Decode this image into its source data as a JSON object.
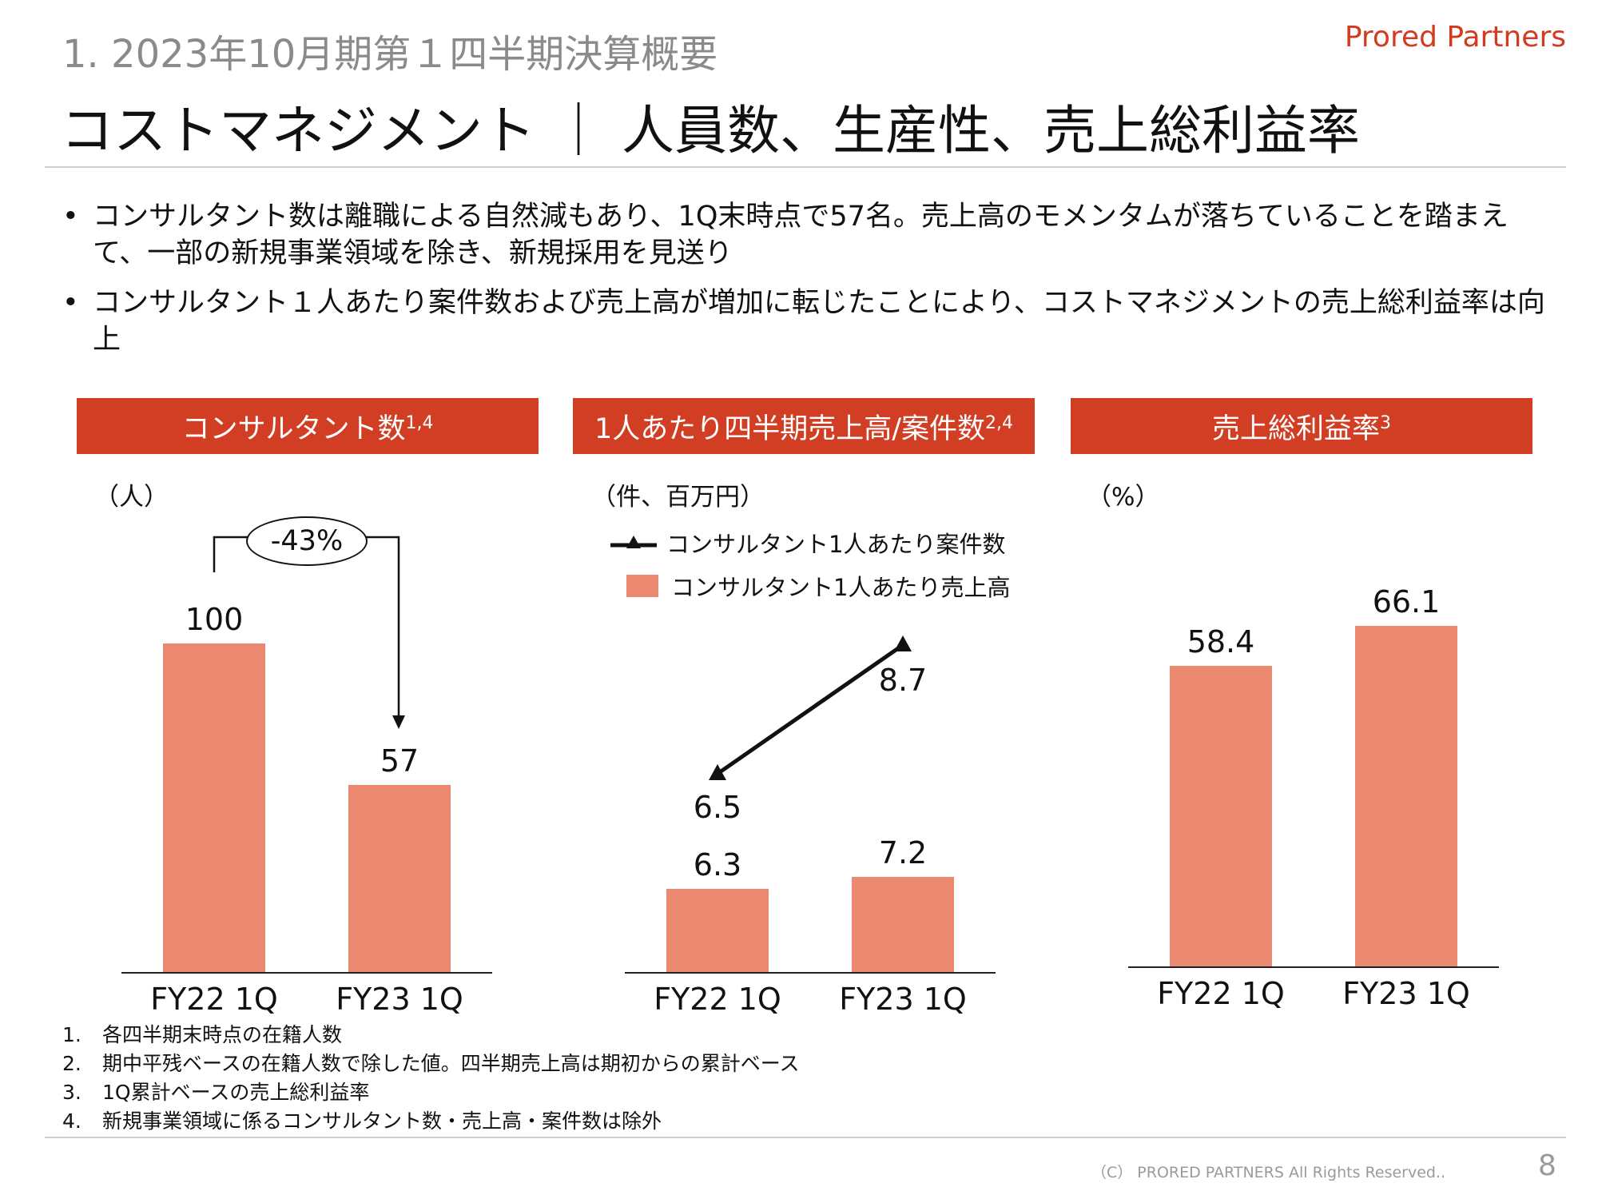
{
  "header": {
    "breadcrumb": "1.  2023年10月期第１四半期決算概要",
    "logo": "Prored Partners",
    "title": "コストマネジメント ｜ 人員数、生産性、売上総利益率"
  },
  "bullets": [
    "コンサルタント数は離職による自然減もあり、1Q末時点で57名。売上高のモメンタムが落ちていることを踏まえて、一部の新規事業領域を除き、新規採用を見送り",
    "コンサルタント１人あたり案件数および売上高が増加に転じたことにより、コストマネジメントの売上総利益率は向上"
  ],
  "colors": {
    "accent": "#d23e24",
    "bar": "#eb8870",
    "line": "#111111"
  },
  "chart_data": [
    {
      "type": "bar",
      "title": "コンサルタント数",
      "title_sup": "1,4",
      "unit": "（人）",
      "categories": [
        "FY22 1Q",
        "FY23 1Q"
      ],
      "values": [
        100,
        57
      ],
      "value_labels": [
        "100",
        "57"
      ],
      "ylim": [
        0,
        100
      ],
      "annotation": "-43%"
    },
    {
      "type": "bar",
      "title": "1人あたり四半期売上高/案件数",
      "title_sup": "2,4",
      "unit": "（件、百万円）",
      "categories": [
        "FY22 1Q",
        "FY23 1Q"
      ],
      "series": [
        {
          "name": "コンサルタント1人あたり案件数",
          "type": "line",
          "values": [
            6.5,
            8.7
          ],
          "value_labels": [
            "6.5",
            "8.7"
          ]
        },
        {
          "name": "コンサルタント1人あたり売上高",
          "type": "bar",
          "values": [
            6.3,
            7.2
          ],
          "value_labels": [
            "6.3",
            "7.2"
          ]
        }
      ]
    },
    {
      "type": "bar",
      "title": "売上総利益率",
      "title_sup": "3",
      "unit": "（%）",
      "categories": [
        "FY22 1Q",
        "FY23 1Q"
      ],
      "values": [
        58.4,
        66.1
      ],
      "value_labels": [
        "58.4",
        "66.1"
      ],
      "ylim": [
        0,
        100
      ]
    }
  ],
  "notes": [
    {
      "num": "1.",
      "text": "各四半期末時点の在籍人数"
    },
    {
      "num": "2.",
      "text": "期中平残ベースの在籍人数で除した値。四半期売上高は期初からの累計ベース"
    },
    {
      "num": "3.",
      "text": "1Q累計ベースの売上総利益率"
    },
    {
      "num": "4.",
      "text": "新規事業領域に係るコンサルタント数・売上高・案件数は除外"
    }
  ],
  "footer": {
    "copyright": "（C） PRORED PARTNERS All Rights Reserved..",
    "page_number": "8"
  }
}
